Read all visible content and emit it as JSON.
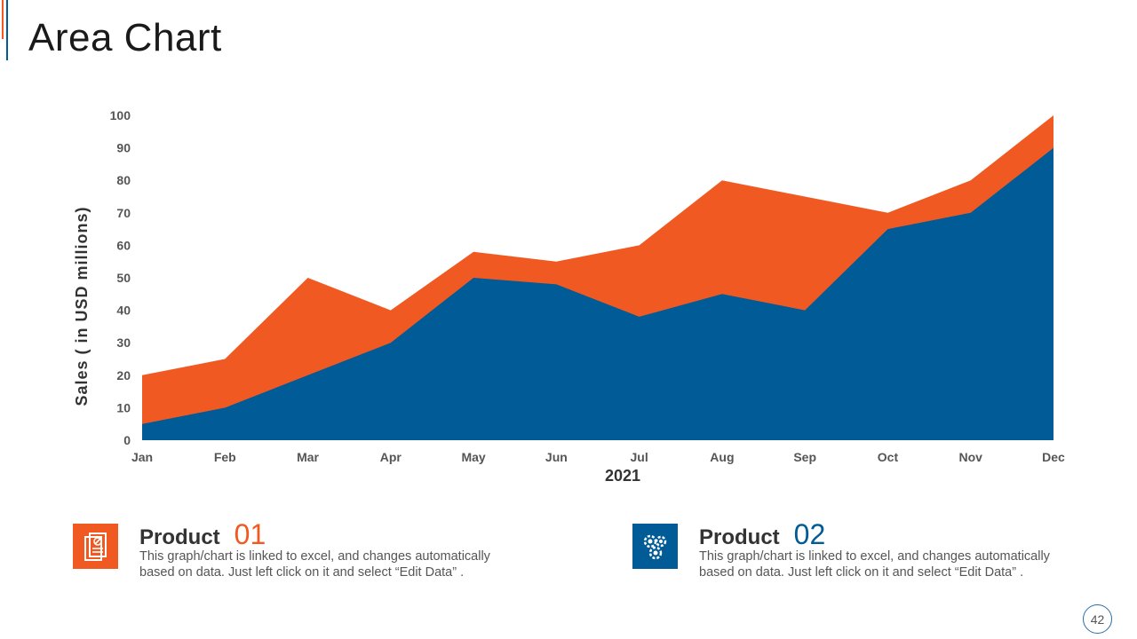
{
  "slide": {
    "title": "Area Chart",
    "page_number": "42",
    "accent_colors": {
      "orange": "#f05a22",
      "blue": "#005b96"
    }
  },
  "chart_data": {
    "type": "area",
    "categories": [
      "Jan",
      "Feb",
      "Mar",
      "Apr",
      "May",
      "Jun",
      "Jul",
      "Aug",
      "Sep",
      "Oct",
      "Nov",
      "Dec"
    ],
    "series": [
      {
        "values": [
          20,
          25,
          50,
          40,
          58,
          55,
          60,
          80,
          75,
          70,
          80,
          100
        ],
        "color": "#f05a22"
      },
      {
        "values": [
          5,
          10,
          20,
          30,
          50,
          48,
          38,
          45,
          40,
          65,
          70,
          90
        ],
        "color": "#005b96"
      }
    ],
    "xlabel": "2021",
    "ylabel": "Sales ( in USD millions)",
    "ylim": [
      0,
      100
    ],
    "yticks": [
      0,
      10,
      20,
      30,
      40,
      50,
      60,
      70,
      80,
      90,
      100
    ],
    "grid": false,
    "legend": "none"
  },
  "products": [
    {
      "label": "Product",
      "number": "01",
      "icon": "document-icon",
      "color": "#f05a22",
      "description": "This graph/chart is linked to excel, and changes automatically based on data. Just left click on it and select “Edit Data” ."
    },
    {
      "label": "Product",
      "number": "02",
      "icon": "gears-icon",
      "color": "#005b96",
      "description": "This graph/chart is linked to excel, and changes automatically based on data. Just left click on it and select “Edit Data” ."
    }
  ]
}
